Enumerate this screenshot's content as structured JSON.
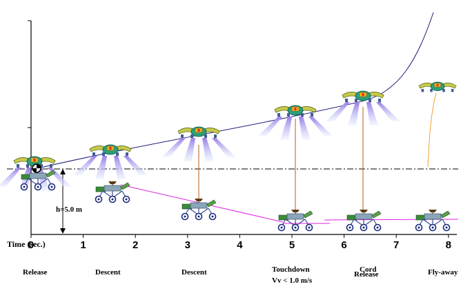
{
  "axis": {
    "title": "Time (sec.)",
    "ticks": [
      "0",
      "1",
      "2",
      "3",
      "4",
      "5",
      "6",
      "7",
      "8"
    ]
  },
  "height_label": "h=5.0  m",
  "phases": [
    {
      "label": "Release"
    },
    {
      "label": "Descent"
    },
    {
      "label": "Descent"
    },
    {
      "label": "Touchdown",
      "sublabel": "Vv < 1.0 m/s"
    },
    {
      "label": "Cord",
      "sublabel": "Release"
    },
    {
      "label": "Fly-away"
    }
  ],
  "colors": {
    "axis": "#000000",
    "trajectory": "#1a1a7a",
    "rover_path": "#e020e0",
    "tether": "#b55a18",
    "flyaway": "#f0a030",
    "dash_line": "#000000",
    "thruster": "#b8a0f0"
  }
}
